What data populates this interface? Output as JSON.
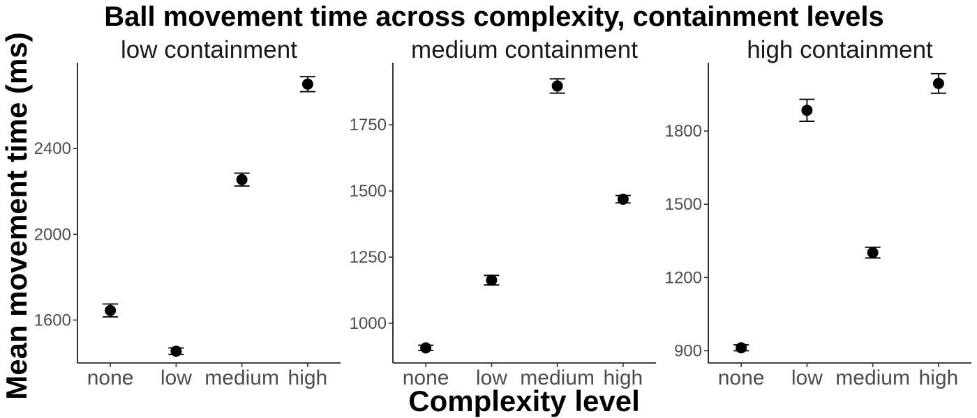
{
  "chart_data": {
    "type": "scatter",
    "title": "Ball movement time across complexity, containment levels",
    "xlabel": "Complexity level",
    "ylabel": "Mean movement time (ms)",
    "categories": [
      "none",
      "low",
      "medium",
      "high"
    ],
    "grid": false,
    "legend": "none",
    "error_bars": true,
    "point_color": "#000000",
    "panels": [
      {
        "title": "low containment",
        "ylim": [
          1400,
          2800
        ],
        "yticks": [
          1600,
          2000,
          2400
        ],
        "points": [
          {
            "x": "none",
            "y": 1645,
            "ymin": 1615,
            "ymax": 1675
          },
          {
            "x": "low",
            "y": 1455,
            "ymin": 1440,
            "ymax": 1470
          },
          {
            "x": "medium",
            "y": 2255,
            "ymin": 2225,
            "ymax": 2285
          },
          {
            "x": "high",
            "y": 2700,
            "ymin": 2665,
            "ymax": 2735
          }
        ]
      },
      {
        "title": "medium containment",
        "ylim": [
          850,
          1985
        ],
        "yticks": [
          1000,
          1250,
          1500,
          1750
        ],
        "points": [
          {
            "x": "none",
            "y": 907,
            "ymin": 897,
            "ymax": 917
          },
          {
            "x": "low",
            "y": 1163,
            "ymin": 1145,
            "ymax": 1181
          },
          {
            "x": "medium",
            "y": 1897,
            "ymin": 1870,
            "ymax": 1924
          },
          {
            "x": "high",
            "y": 1469,
            "ymin": 1455,
            "ymax": 1483
          }
        ]
      },
      {
        "title": "high containment",
        "ylim": [
          850,
          2080
        ],
        "yticks": [
          900,
          1200,
          1500,
          1800
        ],
        "points": [
          {
            "x": "none",
            "y": 912,
            "ymin": 900,
            "ymax": 924
          },
          {
            "x": "low",
            "y": 1885,
            "ymin": 1840,
            "ymax": 1930
          },
          {
            "x": "medium",
            "y": 1302,
            "ymin": 1280,
            "ymax": 1324
          },
          {
            "x": "high",
            "y": 1995,
            "ymin": 1955,
            "ymax": 2035
          }
        ]
      }
    ]
  }
}
